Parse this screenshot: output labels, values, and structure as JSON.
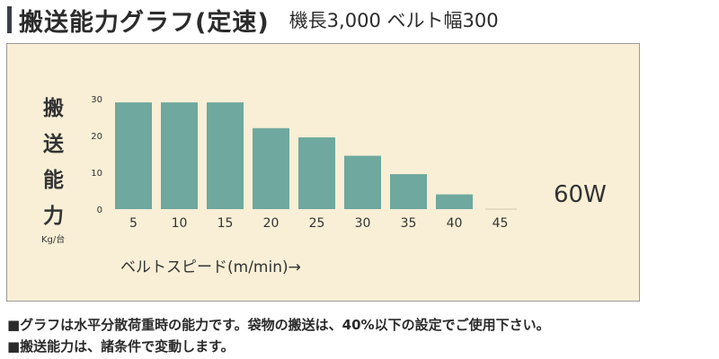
{
  "title": {
    "main": "搬送能力グラフ(定速)",
    "sub": "機長3,000 ベルト幅300"
  },
  "chart_data": {
    "type": "bar",
    "categories": [
      "5",
      "10",
      "15",
      "20",
      "25",
      "30",
      "35",
      "40",
      "45"
    ],
    "values": [
      29,
      29,
      29,
      22,
      19.5,
      14.5,
      9.5,
      4,
      0
    ],
    "ylim": [
      0,
      30
    ],
    "yticks": [
      "30",
      "20",
      "10",
      "0"
    ],
    "ylabel_chars": [
      "搬",
      "送",
      "能",
      "力"
    ],
    "ylabel_unit": "Kg/台",
    "xlabel": "ベルトスピード(m/min)→",
    "annotation": "60W",
    "bar_color": "#6fa89e",
    "grid": false
  },
  "notes": [
    "■グラフは水平分散荷重時の能力です。袋物の搬送は、40%以下の設定でご使用下さい。",
    "■搬送能力は、諸条件で変動します。"
  ]
}
